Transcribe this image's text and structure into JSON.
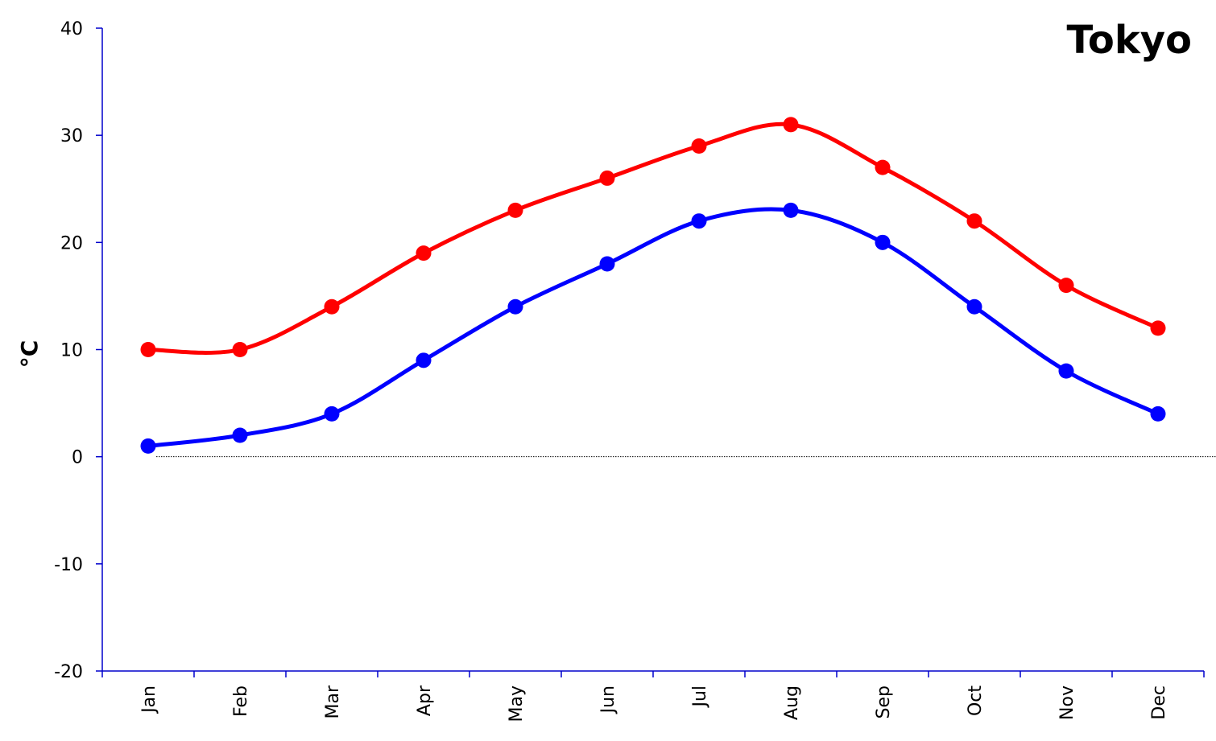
{
  "chart_data": {
    "type": "line",
    "title": "Tokyo",
    "xlabel": "",
    "ylabel": "°C",
    "categories": [
      "Jan",
      "Feb",
      "Mar",
      "Apr",
      "May",
      "Jun",
      "Jul",
      "Aug",
      "Sep",
      "Oct",
      "Nov",
      "Dec"
    ],
    "ylim": [
      -20,
      40
    ],
    "yticks": [
      "40",
      "30",
      "20",
      "10",
      "0",
      "-10",
      "-20"
    ],
    "grid": false,
    "smooth": true,
    "zero_line": "dotted",
    "series": [
      {
        "color": "#ff0000",
        "values": [
          10,
          10,
          14,
          19,
          23,
          26,
          29,
          31,
          27,
          22,
          16,
          12
        ]
      },
      {
        "color": "#0000ff",
        "values": [
          1,
          2,
          4,
          9,
          14,
          18,
          22,
          23,
          20,
          14,
          8,
          4
        ]
      }
    ],
    "axis_color": "#0000cc"
  }
}
